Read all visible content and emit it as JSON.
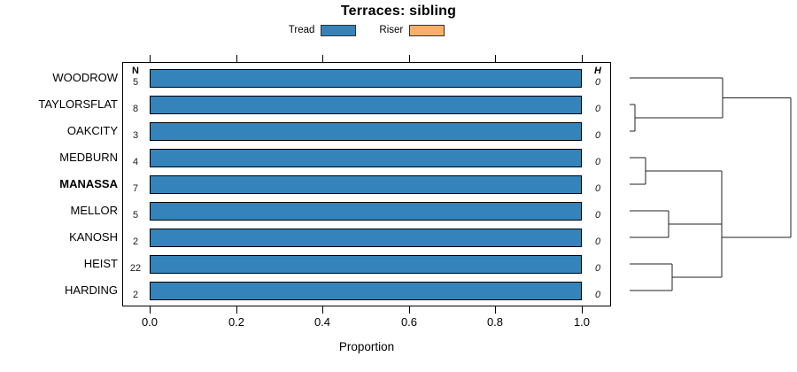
{
  "title": "Terraces: sibling",
  "legend": {
    "tread_label": "Tread",
    "riser_label": "Riser",
    "tread_color": "#3484BB",
    "riser_color": "#FBAE65"
  },
  "columns": {
    "n_header": "N",
    "h_header": "H"
  },
  "axis": {
    "label": "Proportion",
    "ticks": [
      "0.0",
      "0.2",
      "0.4",
      "0.6",
      "0.8",
      "1.0"
    ]
  },
  "rows": [
    {
      "label": "WOODROW",
      "bold": false,
      "n": "5",
      "h": "0",
      "tread": 1.0,
      "riser": 0.0
    },
    {
      "label": "TAYLORSFLAT",
      "bold": false,
      "n": "8",
      "h": "0",
      "tread": 1.0,
      "riser": 0.0
    },
    {
      "label": "OAKCITY",
      "bold": false,
      "n": "3",
      "h": "0",
      "tread": 1.0,
      "riser": 0.0
    },
    {
      "label": "MEDBURN",
      "bold": false,
      "n": "4",
      "h": "0",
      "tread": 1.0,
      "riser": 0.0
    },
    {
      "label": "MANASSA",
      "bold": true,
      "n": "7",
      "h": "0",
      "tread": 1.0,
      "riser": 0.0
    },
    {
      "label": "MELLOR",
      "bold": false,
      "n": "5",
      "h": "0",
      "tread": 1.0,
      "riser": 0.0
    },
    {
      "label": "KANOSH",
      "bold": false,
      "n": "2",
      "h": "0",
      "tread": 1.0,
      "riser": 0.0
    },
    {
      "label": "HEIST",
      "bold": false,
      "n": "22",
      "h": "0",
      "tread": 1.0,
      "riser": 0.0
    },
    {
      "label": "HARDING",
      "bold": false,
      "n": "2",
      "h": "0",
      "tread": 1.0,
      "riser": 0.0
    }
  ],
  "chart_data": {
    "type": "bar",
    "orientation": "horizontal",
    "stacked": true,
    "title": "Terraces: sibling",
    "xlabel": "Proportion",
    "xlim": [
      0,
      1
    ],
    "xticks": [
      0.0,
      0.2,
      0.4,
      0.6,
      0.8,
      1.0
    ],
    "grid": false,
    "legend_position": "top-center",
    "categories": [
      "WOODROW",
      "TAYLORSFLAT",
      "OAKCITY",
      "MEDBURN",
      "MANASSA",
      "MELLOR",
      "KANOSH",
      "HEIST",
      "HARDING"
    ],
    "series": [
      {
        "name": "Tread",
        "color": "#3484BB",
        "values": [
          1.0,
          1.0,
          1.0,
          1.0,
          1.0,
          1.0,
          1.0,
          1.0,
          1.0
        ]
      },
      {
        "name": "Riser",
        "color": "#FBAE65",
        "values": [
          0.0,
          0.0,
          0.0,
          0.0,
          0.0,
          0.0,
          0.0,
          0.0,
          0.0
        ]
      }
    ],
    "n_values": [
      5,
      8,
      3,
      4,
      7,
      5,
      2,
      22,
      2
    ],
    "h_values": [
      0,
      0,
      0,
      0,
      0,
      0,
      0,
      0,
      0
    ],
    "highlighted_category": "MANASSA",
    "dendrogram": {
      "side": "right",
      "structure": "((WOODROW,(TAYLORSFLAT,OAKCITY)),(((MEDBURN,MANASSA),(MELLOR,KANOSH)),(HEIST,HARDING)))",
      "segments": [
        [
          21,
          88,
          126,
          88
        ],
        [
          21,
          118,
          27,
          118
        ],
        [
          21,
          148,
          27,
          148
        ],
        [
          27,
          118,
          27,
          148
        ],
        [
          27,
          133,
          126,
          133
        ],
        [
          126,
          88,
          126,
          133
        ],
        [
          126,
          110.5,
          203,
          110.5
        ],
        [
          21,
          178,
          39,
          178
        ],
        [
          21,
          208,
          39,
          208
        ],
        [
          39,
          178,
          39,
          208
        ],
        [
          39,
          193,
          125,
          193
        ],
        [
          21,
          238,
          65,
          238
        ],
        [
          21,
          268,
          65,
          268
        ],
        [
          65,
          238,
          65,
          268
        ],
        [
          65,
          253,
          125,
          253
        ],
        [
          21,
          298,
          69,
          298
        ],
        [
          21,
          328,
          69,
          328
        ],
        [
          69,
          298,
          69,
          328
        ],
        [
          69,
          313,
          125,
          313
        ],
        [
          125,
          193,
          125,
          313
        ],
        [
          125,
          268,
          203,
          268
        ],
        [
          203,
          110.5,
          203,
          268
        ]
      ]
    }
  }
}
